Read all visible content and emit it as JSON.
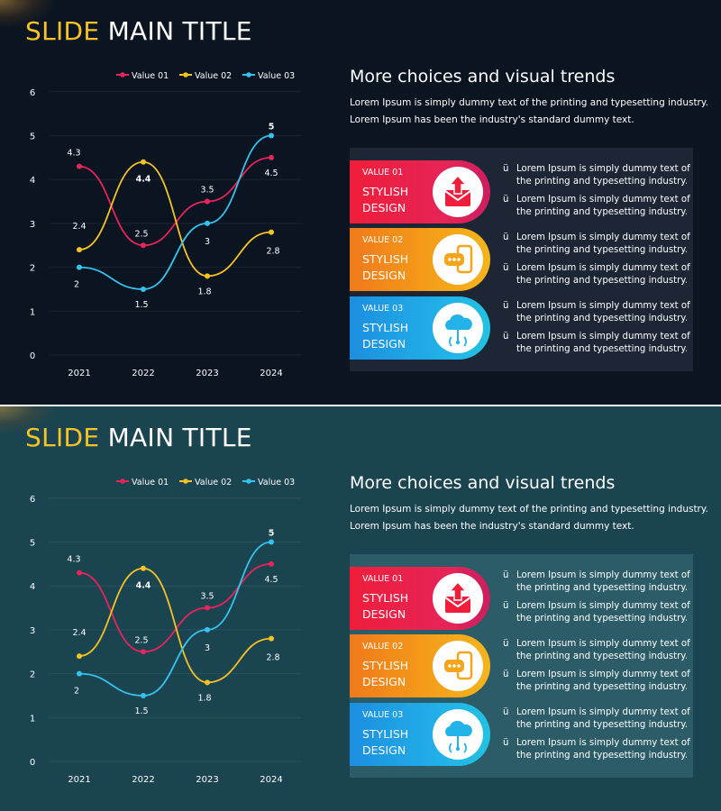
{
  "slides": [
    {
      "theme": "dark-navy",
      "background": "#0b1421",
      "title": {
        "highlight": "SLIDE",
        "rest": "MAIN TITLE"
      },
      "heading": "More choices and visual trends",
      "description": [
        "Lorem Ipsum is simply dummy text of the printing and typesetting industry.",
        "Lorem Ipsum has been the industry's standard dummy text."
      ]
    },
    {
      "theme": "dark-teal",
      "background": "#1b4451",
      "title": {
        "highlight": "SLIDE",
        "rest": "MAIN TITLE"
      },
      "heading": "More choices and visual trends",
      "description": [
        "Lorem Ipsum is simply dummy text of the printing and typesetting industry.",
        "Lorem Ipsum has been the industry's standard dummy text."
      ]
    }
  ],
  "cards": [
    {
      "value_label": "VALUE 01",
      "line1": "STYLISH",
      "line2": "DESIGN",
      "icon": "mail-upload-icon",
      "color": "#f01e3a",
      "bullets": [
        {
          "mark": "ü",
          "line1": "Lorem Ipsum is simply dummy text of",
          "line2": "the printing and typesetting industry."
        },
        {
          "mark": "ü",
          "line1": "Lorem Ipsum is simply dummy text of",
          "line2": "the printing and typesetting industry."
        }
      ]
    },
    {
      "value_label": "VALUE 02",
      "line1": "STYLISH",
      "line2": "DESIGN",
      "icon": "phone-chat-icon",
      "color": "#f5a51a",
      "bullets": [
        {
          "mark": "ü",
          "line1": "Lorem Ipsum is simply dummy text of",
          "line2": "the printing and typesetting industry."
        },
        {
          "mark": "ü",
          "line1": "Lorem Ipsum is simply dummy text of",
          "line2": "the printing and typesetting industry."
        }
      ]
    },
    {
      "value_label": "VALUE 03",
      "line1": "STYLISH",
      "line2": "DESIGN",
      "icon": "cloud-network-icon",
      "color": "#22b3e8",
      "bullets": [
        {
          "mark": "ü",
          "line1": "Lorem Ipsum is simply dummy text of",
          "line2": "the printing and typesetting industry."
        },
        {
          "mark": "ü",
          "line1": "Lorem Ipsum is simply dummy text of",
          "line2": "the printing and typesetting industry."
        }
      ]
    }
  ],
  "chart_data": {
    "type": "line",
    "smooth": true,
    "categories": [
      "2021",
      "2022",
      "2023",
      "2024"
    ],
    "ylim": [
      0,
      6
    ],
    "yticks": [
      0,
      1,
      2,
      3,
      4,
      5,
      6
    ],
    "grid": true,
    "legend": "top",
    "series": [
      {
        "name": "Value 01",
        "color": "#e8245a",
        "values": [
          4.3,
          2.5,
          3.5,
          4.5
        ]
      },
      {
        "name": "Value 02",
        "color": "#f7c325",
        "values": [
          2.4,
          4.4,
          1.8,
          2.8
        ]
      },
      {
        "name": "Value 03",
        "color": "#35c3ee",
        "values": [
          2,
          1.5,
          3,
          5
        ]
      }
    ]
  }
}
